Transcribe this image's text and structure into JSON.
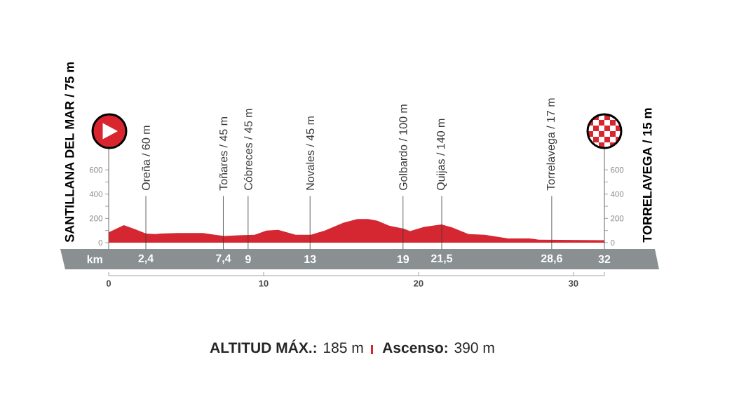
{
  "chart_data": {
    "type": "area",
    "ylabel": "SANTILLANA DEL MAR / 75 m",
    "y2label": "TORRELAVEGA / 15 m",
    "x2label": "km",
    "x": [
      0,
      0.98,
      1.73,
      2.41,
      3.0,
      3.38,
      4.45,
      6.1,
      6.86,
      7.47,
      8.37,
      9.43,
      10.18,
      10.94,
      11.39,
      12.07,
      13.05,
      13.95,
      15.16,
      16.06,
      16.74,
      17.35,
      18.1,
      19.04,
      19.46,
      20.36,
      21.49,
      22.17,
      23.23,
      24.28,
      25.79,
      27.15,
      27.75,
      32
    ],
    "values": [
      85,
      145,
      110,
      75,
      70,
      75,
      80,
      80,
      65,
      55,
      60,
      65,
      100,
      105,
      90,
      65,
      65,
      100,
      165,
      195,
      195,
      180,
      140,
      115,
      95,
      130,
      150,
      125,
      70,
      65,
      35,
      35,
      25,
      20
    ],
    "color": "#d52731",
    "xlim": [
      0,
      32
    ],
    "xticks": [
      0,
      10,
      20,
      30,
      {
        "value": 32,
        "label": null
      }
    ],
    "x2lim": [
      0,
      32
    ],
    "x2ticks": [
      {
        "value": 2.4,
        "label": "2,4"
      },
      {
        "value": 7.4,
        "label": "7,4"
      },
      9,
      13,
      19,
      {
        "value": 21.5,
        "label": "21,5"
      },
      {
        "value": 28.6,
        "label": "28,6"
      },
      32
    ],
    "ylim": [
      0,
      780
    ],
    "yticks": [
      0,
      {
        "value": 100,
        "label": null
      },
      200,
      {
        "value": 300,
        "label": null
      },
      400,
      {
        "value": 500,
        "label": null
      },
      600
    ],
    "y2lim": [
      0,
      780
    ],
    "y2ticks": [
      0,
      {
        "value": 100,
        "label": null
      },
      200,
      {
        "value": 300,
        "label": null
      },
      400,
      {
        "value": 500,
        "label": null
      },
      600
    ],
    "ref_lines": [
      {
        "axis": "x",
        "value": 2.4,
        "label": "Oreña / 60 m"
      },
      {
        "axis": "x",
        "value": 7.4,
        "label": "Toñares / 45 m"
      },
      {
        "axis": "x",
        "value": 9,
        "label": "Cóbreces / 45 m"
      },
      {
        "axis": "x",
        "value": 13,
        "label": "Novales / 45 m"
      },
      {
        "axis": "x",
        "value": 19,
        "label": "Golbardo / 100 m"
      },
      {
        "axis": "x",
        "value": 21.5,
        "label": "Quijas / 140 m"
      },
      {
        "axis": "x",
        "value": 28.6,
        "label": "Torrelavega / 17 m"
      }
    ],
    "annotations": [
      "**ALTITUD MÁX.:** 185 m",
      "**Ascenso:** 390 m"
    ]
  }
}
